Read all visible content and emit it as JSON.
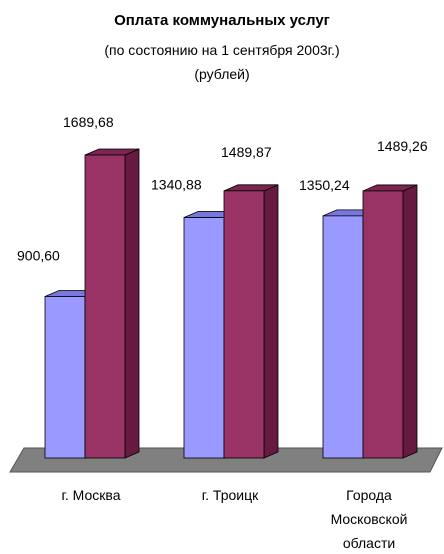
{
  "title": "Оплата коммунальных услуг",
  "subtitle_line1": "(по состоянию на 1 сентября 2003г.)",
  "subtitle_line2": "(рублей)",
  "colors": {
    "series1_front": "#9999ff",
    "series1_side": "#6666cc",
    "series1_top": "#7777dd",
    "series2_front": "#993366",
    "series2_side": "#661a40",
    "series2_top": "#7a2650",
    "floor": "#808080",
    "floor_edge": "#555555"
  },
  "chart_data": {
    "type": "bar",
    "title": "Оплата коммунальных услуг",
    "subtitle": "(по состоянию на 1 сентября 2003г.) (рублей)",
    "categories": [
      [
        "г. Москва"
      ],
      [
        "г. Троицк"
      ],
      [
        "Города",
        "Московской",
        "области"
      ]
    ],
    "series": [
      {
        "values": [
          900.6,
          1340.88,
          1350.24
        ],
        "labels": [
          "900,60",
          "1340,88",
          "1350,24"
        ]
      },
      {
        "values": [
          1689.68,
          1489.87,
          1489.26
        ],
        "labels": [
          "1689,68",
          "1489,87",
          "1489,26"
        ]
      }
    ],
    "ylim": [
      0,
      1689.68
    ],
    "grid": false,
    "legend": "none",
    "style": "3d-column"
  }
}
